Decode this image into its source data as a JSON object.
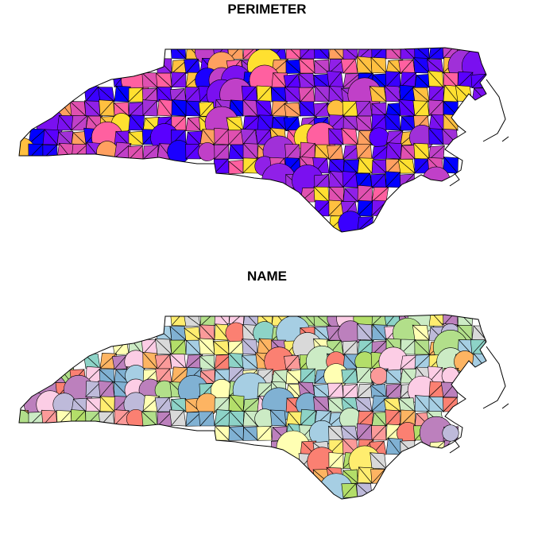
{
  "panels": [
    {
      "title": "PERIMETER",
      "palette": [
        "#0000ff",
        "#1b00ff",
        "#3a00ff",
        "#5a00ff",
        "#7a10f0",
        "#9020e8",
        "#a030d8",
        "#c040c8",
        "#e050b0",
        "#ff60a0",
        "#ffa060",
        "#ffc040",
        "#ffe030"
      ]
    },
    {
      "title": "NAME",
      "palette": [
        "#8dd3c7",
        "#ffffb3",
        "#bebada",
        "#fb8072",
        "#80b1d3",
        "#fdb462",
        "#b3de69",
        "#fccde5",
        "#d9d9d9",
        "#bc80bd",
        "#ccebc5",
        "#ffed6f",
        "#a6cee3",
        "#b2df8a",
        "#fb9a99"
      ]
    }
  ]
}
